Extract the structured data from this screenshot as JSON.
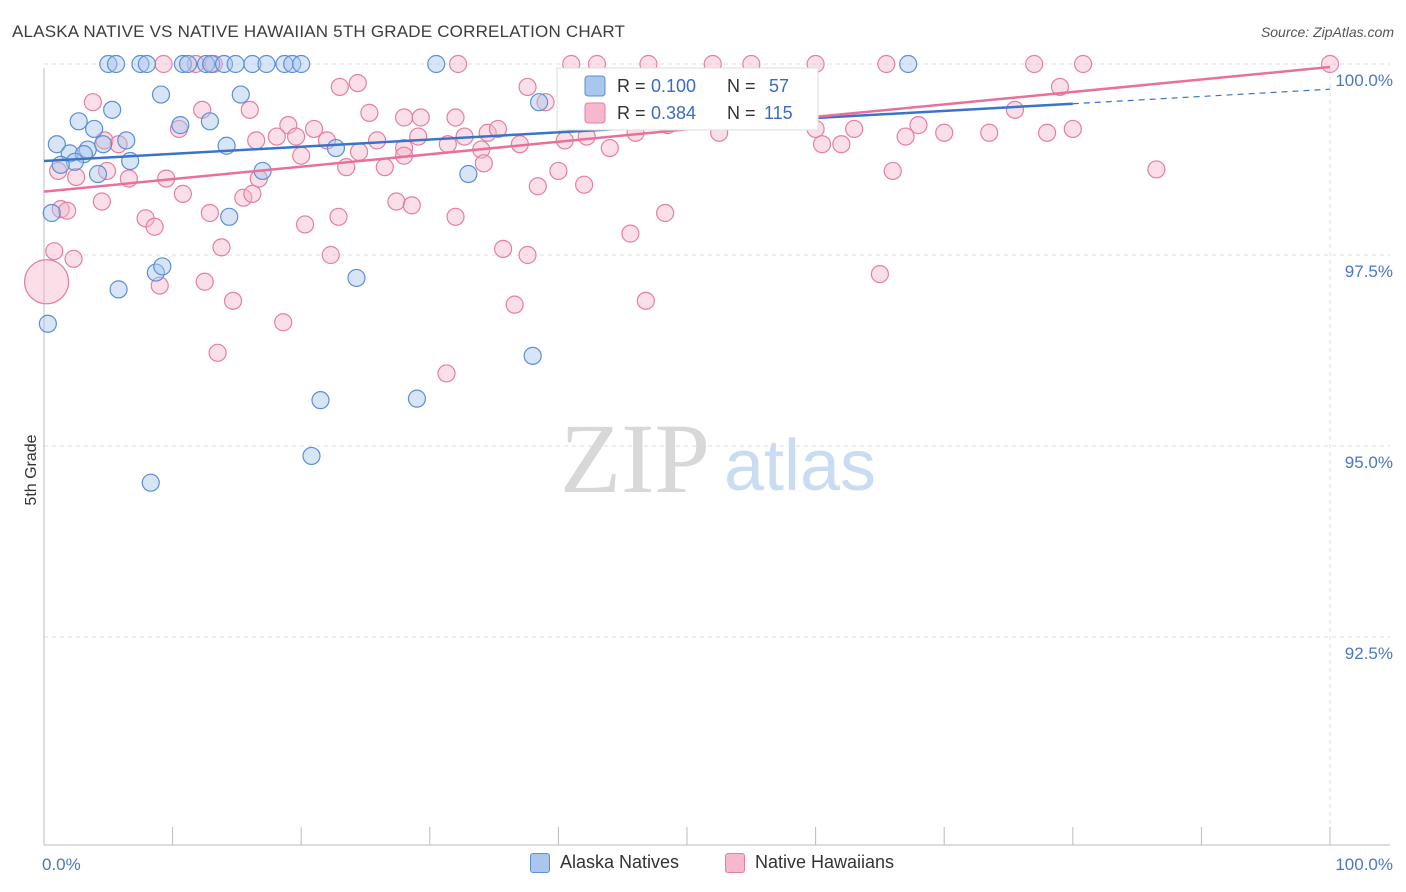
{
  "title": "ALASKA NATIVE VS NATIVE HAWAIIAN 5TH GRADE CORRELATION CHART",
  "source": "Source: ZipAtlas.com",
  "watermark": {
    "zip": "ZIP",
    "atlas": "atlas"
  },
  "colors": {
    "blue_fill": "#a9c6ee",
    "blue_stroke": "#5b8fd6",
    "blue_line": "#3a74c9",
    "pink_fill": "#f5b8cc",
    "pink_stroke": "#e57fa1",
    "pink_line": "#e8709a",
    "axis_text": "#4a78c2",
    "grid": "#dddddd"
  },
  "legend": {
    "rows": [
      {
        "r_label": "R =",
        "r_value": "0.100",
        "n_label": "N =",
        "n_value": "57"
      },
      {
        "r_label": "R =",
        "r_value": "0.384",
        "n_label": "N =",
        "n_value": "115"
      }
    ]
  },
  "bottom_legend": [
    "Alaska Natives",
    "Native Hawaiians"
  ],
  "chart_data": {
    "type": "scatter",
    "title": "ALASKA NATIVE VS NATIVE HAWAIIAN 5TH GRADE CORRELATION CHART",
    "xlabel": "",
    "ylabel": "5th Grade",
    "xlim": [
      0,
      100
    ],
    "ylim": [
      90.0,
      100.4
    ],
    "x_tick_labels": [
      "0.0%",
      "100.0%"
    ],
    "y_ticks": [
      100.0,
      97.5,
      95.0,
      92.5
    ],
    "y_tick_labels": [
      "100.0%",
      "97.5%",
      "95.0%",
      "92.5%"
    ],
    "grid": true,
    "legend_position": "top-center",
    "series": [
      {
        "name": "Alaska Natives",
        "R": 0.1,
        "N": 57,
        "trend": {
          "x0": 0,
          "y0": 98.73,
          "x1": 80,
          "y1": 99.48,
          "dashed_to_x": 100,
          "dashed_to_y": 99.67
        },
        "points": [
          [
            5.0,
            100
          ],
          [
            5.6,
            100
          ],
          [
            7.5,
            100
          ],
          [
            8.0,
            100
          ],
          [
            10.8,
            100
          ],
          [
            11.2,
            100
          ],
          [
            12.6,
            100
          ],
          [
            13.0,
            100
          ],
          [
            14.0,
            100
          ],
          [
            14.9,
            100
          ],
          [
            16.2,
            100
          ],
          [
            17.3,
            100
          ],
          [
            18.7,
            100
          ],
          [
            19.3,
            100
          ],
          [
            20.0,
            100
          ],
          [
            30.5,
            100
          ],
          [
            67.2,
            100
          ],
          [
            9.1,
            99.6
          ],
          [
            15.3,
            99.6
          ],
          [
            5.3,
            99.4
          ],
          [
            2.7,
            99.25
          ],
          [
            12.9,
            99.25
          ],
          [
            10.6,
            99.2
          ],
          [
            3.9,
            99.15
          ],
          [
            6.4,
            99.0
          ],
          [
            1.0,
            98.95
          ],
          [
            4.6,
            98.95
          ],
          [
            14.2,
            98.93
          ],
          [
            22.7,
            98.9
          ],
          [
            2.0,
            98.83
          ],
          [
            3.4,
            98.88
          ],
          [
            3.1,
            98.82
          ],
          [
            6.7,
            98.73
          ],
          [
            2.4,
            98.72
          ],
          [
            1.3,
            98.68
          ],
          [
            17.0,
            98.6
          ],
          [
            33.0,
            98.56
          ],
          [
            4.2,
            98.56
          ],
          [
            38.5,
            99.5
          ],
          [
            0.6,
            98.05
          ],
          [
            14.4,
            98.0
          ],
          [
            8.7,
            97.27
          ],
          [
            9.2,
            97.35
          ],
          [
            24.3,
            97.2
          ],
          [
            5.8,
            97.05
          ],
          [
            0.3,
            96.6
          ],
          [
            38.0,
            96.18
          ],
          [
            21.5,
            95.6
          ],
          [
            29.0,
            95.62
          ],
          [
            20.8,
            94.87
          ],
          [
            8.3,
            94.52
          ]
        ]
      },
      {
        "name": "Native Hawaiians",
        "R": 0.384,
        "N": 115,
        "trend": {
          "x0": 0,
          "y0": 98.33,
          "x1": 100,
          "y1": 99.96
        },
        "points": [
          [
            9.3,
            100
          ],
          [
            11.8,
            100
          ],
          [
            13.2,
            100
          ],
          [
            32.2,
            100
          ],
          [
            41.0,
            100
          ],
          [
            43.0,
            100
          ],
          [
            47.0,
            100
          ],
          [
            52.0,
            100
          ],
          [
            55.0,
            100
          ],
          [
            60.0,
            100
          ],
          [
            65.5,
            100
          ],
          [
            77.0,
            100
          ],
          [
            80.8,
            100
          ],
          [
            100.0,
            100
          ],
          [
            3.8,
            99.5
          ],
          [
            12.3,
            99.4
          ],
          [
            16.0,
            99.4
          ],
          [
            23.0,
            99.7
          ],
          [
            24.4,
            99.75
          ],
          [
            25.3,
            99.36
          ],
          [
            28.0,
            99.3
          ],
          [
            29.3,
            99.3
          ],
          [
            32.0,
            99.3
          ],
          [
            37.6,
            99.7
          ],
          [
            39.0,
            99.5
          ],
          [
            41.0,
            99.4
          ],
          [
            45.5,
            99.6
          ],
          [
            49.5,
            99.5
          ],
          [
            59.5,
            99.45
          ],
          [
            75.5,
            99.4
          ],
          [
            79.0,
            99.7
          ],
          [
            10.5,
            99.15
          ],
          [
            19.0,
            99.2
          ],
          [
            21.0,
            99.15
          ],
          [
            29.1,
            99.05
          ],
          [
            32.7,
            99.05
          ],
          [
            34.5,
            99.1
          ],
          [
            35.3,
            99.15
          ],
          [
            42.2,
            99.05
          ],
          [
            46.0,
            99.1
          ],
          [
            52.5,
            99.1
          ],
          [
            60.0,
            99.15
          ],
          [
            63.0,
            99.15
          ],
          [
            70.0,
            99.1
          ],
          [
            73.5,
            99.1
          ],
          [
            78.0,
            99.1
          ],
          [
            80.0,
            99.15
          ],
          [
            67.0,
            99.05
          ],
          [
            68.0,
            99.2
          ],
          [
            4.7,
            99.0
          ],
          [
            5.8,
            98.95
          ],
          [
            16.5,
            99.0
          ],
          [
            18.1,
            99.05
          ],
          [
            19.6,
            99.05
          ],
          [
            22.0,
            99.0
          ],
          [
            24.5,
            98.85
          ],
          [
            25.9,
            99.0
          ],
          [
            28.0,
            98.9
          ],
          [
            31.4,
            98.95
          ],
          [
            34.0,
            98.88
          ],
          [
            37.0,
            98.95
          ],
          [
            40.5,
            99.0
          ],
          [
            44.0,
            98.9
          ],
          [
            48.5,
            99.2
          ],
          [
            60.5,
            98.95
          ],
          [
            62.0,
            98.95
          ],
          [
            1.1,
            98.6
          ],
          [
            2.5,
            98.52
          ],
          [
            4.9,
            98.6
          ],
          [
            6.6,
            98.5
          ],
          [
            9.5,
            98.5
          ],
          [
            16.7,
            98.5
          ],
          [
            20.0,
            98.8
          ],
          [
            23.5,
            98.65
          ],
          [
            26.5,
            98.65
          ],
          [
            28.0,
            98.8
          ],
          [
            34.2,
            98.7
          ],
          [
            40.0,
            98.6
          ],
          [
            42.0,
            98.42
          ],
          [
            66.0,
            98.6
          ],
          [
            86.5,
            98.62
          ],
          [
            1.3,
            98.1
          ],
          [
            1.8,
            98.08
          ],
          [
            4.5,
            98.2
          ],
          [
            10.8,
            98.3
          ],
          [
            12.9,
            98.05
          ],
          [
            15.5,
            98.25
          ],
          [
            16.2,
            98.3
          ],
          [
            20.3,
            97.9
          ],
          [
            22.9,
            98.0
          ],
          [
            27.4,
            98.2
          ],
          [
            28.6,
            98.15
          ],
          [
            32.0,
            98.0
          ],
          [
            38.4,
            98.4
          ],
          [
            45.6,
            97.78
          ],
          [
            48.3,
            98.05
          ],
          [
            7.9,
            97.98
          ],
          [
            8.6,
            97.87
          ],
          [
            13.8,
            97.6
          ],
          [
            22.3,
            97.5
          ],
          [
            35.7,
            97.58
          ],
          [
            37.6,
            97.5
          ],
          [
            0.8,
            97.55
          ],
          [
            2.3,
            97.45
          ],
          [
            9.0,
            97.1
          ],
          [
            12.5,
            97.15
          ],
          [
            14.7,
            96.9
          ],
          [
            18.6,
            96.62
          ],
          [
            36.6,
            96.85
          ],
          [
            46.8,
            96.9
          ],
          [
            65.0,
            97.25
          ],
          [
            13.5,
            96.22
          ],
          [
            31.3,
            95.95
          ],
          [
            0.2,
            97.15
          ]
        ]
      }
    ]
  }
}
